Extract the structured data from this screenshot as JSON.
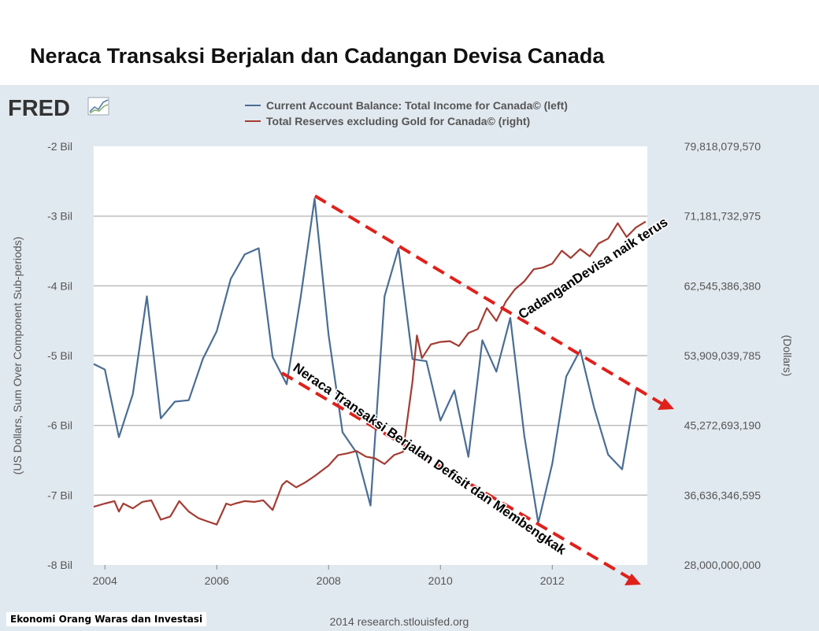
{
  "page": {
    "title": "Neraca Transaksi Berjalan dan Cadangan Devisa Canada",
    "brand": "FRED",
    "source": "2014 research.stlouisfed.org",
    "badge": "Ekonomi Orang Waras dan Investasi"
  },
  "annotations": {
    "upper": "CadanganDevisa naik terus",
    "lower": "Neraca Transaksi Berjalan Defisit dan Membengkak"
  },
  "colors": {
    "series_left": "#4a6d94",
    "series_right": "#a33c33",
    "arrow": "#e0201a",
    "panel": "#e1e9f0"
  },
  "chart_data": {
    "type": "line",
    "title": "",
    "xlabel": "",
    "ylabel": "(US Dollars, Sum Over Component Sub-periods)",
    "ylabel_right": "(Dollars)",
    "xlim": [
      2003.8,
      2013.7
    ],
    "x_ticks": [
      "2004",
      "2006",
      "2008",
      "2010",
      "2012"
    ],
    "x_tick_values": [
      2004,
      2006,
      2008,
      2010,
      2012
    ],
    "ylim": [
      -8,
      -2
    ],
    "y_ticks": [
      "-2 Bil",
      "-3 Bil",
      "-4 Bil",
      "-5 Bil",
      "-6 Bil",
      "-7 Bil",
      "-8 Bil"
    ],
    "y_tick_values": [
      -2,
      -3,
      -4,
      -5,
      -6,
      -7,
      -8
    ],
    "ylim_right": [
      28000000000,
      79818079570
    ],
    "y_ticks_right": [
      "79,818,079,570",
      "71,181,732,975",
      "62,545,386,380",
      "53,909,039,785",
      "45,272,693,190",
      "36,636,346,595",
      "28,000,000,000"
    ],
    "y_tick_values_right": [
      79818079570,
      71181732975,
      62545386380,
      53909039785,
      45272693190,
      36636346595,
      28000000000
    ],
    "legend_position": "top",
    "grid": "horizontal",
    "series": [
      {
        "name": "Current Account Balance: Total Income for Canada© (left)",
        "axis": "left",
        "x": [
          2003.8,
          2004.0,
          2004.25,
          2004.5,
          2004.75,
          2005.0,
          2005.25,
          2005.5,
          2005.75,
          2006.0,
          2006.25,
          2006.5,
          2006.75,
          2007.0,
          2007.25,
          2007.5,
          2007.75,
          2008.0,
          2008.25,
          2008.5,
          2008.75,
          2009.0,
          2009.25,
          2009.5,
          2009.75,
          2010.0,
          2010.25,
          2010.5,
          2010.75,
          2011.0,
          2011.25,
          2011.5,
          2011.75,
          2012.0,
          2012.25,
          2012.5,
          2012.75,
          2013.0,
          2013.25,
          2013.5
        ],
        "values": [
          -5.12,
          -5.2,
          -6.17,
          -5.55,
          -4.15,
          -5.9,
          -5.66,
          -5.64,
          -5.05,
          -4.65,
          -3.9,
          -3.55,
          -3.46,
          -5.02,
          -5.41,
          -4.17,
          -2.75,
          -4.7,
          -6.1,
          -6.39,
          -7.15,
          -4.15,
          -3.46,
          -5.05,
          -5.08,
          -5.93,
          -5.5,
          -6.45,
          -4.78,
          -5.23,
          -4.46,
          -6.15,
          -7.4,
          -6.55,
          -5.3,
          -4.92,
          -5.75,
          -6.42,
          -6.63,
          -5.47
        ]
      },
      {
        "name": "Total Reserves excluding Gold for Canada© (right)",
        "axis": "right",
        "x": [
          2003.8,
          2004.0,
          2004.17,
          2004.25,
          2004.33,
          2004.5,
          2004.67,
          2004.83,
          2005.0,
          2005.17,
          2005.33,
          2005.5,
          2005.67,
          2005.83,
          2006.0,
          2006.17,
          2006.25,
          2006.33,
          2006.5,
          2006.67,
          2006.83,
          2007.0,
          2007.17,
          2007.25,
          2007.42,
          2007.58,
          2007.75,
          2008.0,
          2008.17,
          2008.33,
          2008.5,
          2008.67,
          2008.83,
          2009.0,
          2009.17,
          2009.33,
          2009.5,
          2009.58,
          2009.67,
          2009.83,
          2010.0,
          2010.17,
          2010.33,
          2010.5,
          2010.67,
          2010.83,
          2011.0,
          2011.17,
          2011.33,
          2011.5,
          2011.67,
          2011.83,
          2012.0,
          2012.17,
          2012.33,
          2012.5,
          2012.67,
          2012.83,
          2013.0,
          2013.17,
          2013.33,
          2013.5,
          2013.67
        ],
        "values": [
          35.2,
          35.6,
          35.9,
          34.6,
          35.6,
          35.0,
          35.8,
          36.0,
          33.6,
          34.0,
          35.9,
          34.6,
          33.8,
          33.4,
          33.0,
          35.6,
          35.4,
          35.6,
          35.9,
          35.8,
          36.0,
          34.8,
          37.9,
          38.4,
          37.6,
          38.2,
          39.0,
          40.3,
          41.6,
          41.8,
          42.1,
          41.4,
          41.2,
          40.5,
          41.6,
          42.0,
          50.7,
          56.4,
          53.6,
          55.3,
          55.6,
          55.7,
          55.1,
          56.7,
          57.2,
          59.8,
          58.2,
          60.6,
          62.1,
          63.1,
          64.6,
          64.8,
          65.3,
          66.9,
          66.0,
          67.1,
          66.2,
          67.8,
          68.4,
          70.3,
          68.6,
          69.8,
          70.5
        ]
      }
    ]
  }
}
